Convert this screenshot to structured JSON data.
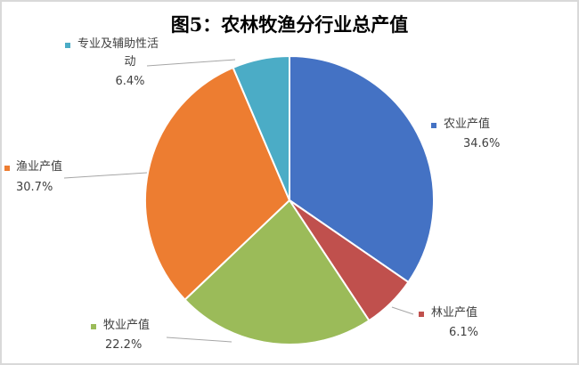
{
  "chart_data": {
    "type": "pie",
    "title": "图5：农林牧渔分行业总产值",
    "start_angle": "12 o'clock",
    "direction": "clockwise",
    "slices": [
      {
        "label": "农业产值",
        "value": 34.6,
        "display": "34.6%",
        "color": "#4472C4"
      },
      {
        "label": "林业产值",
        "value": 6.1,
        "display": "6.1%",
        "color": "#C0504D"
      },
      {
        "label": "牧业产值",
        "value": 22.2,
        "display": "22.2%",
        "color": "#9BBB59"
      },
      {
        "label": "渔业产值",
        "value": 30.7,
        "display": "30.7%",
        "color": "#ED7D31"
      },
      {
        "label": "专业及辅助性活动",
        "label_lines": [
          "专业及辅助性活",
          "动"
        ],
        "value": 6.4,
        "display": "6.4%",
        "color": "#4BACC6"
      }
    ]
  }
}
